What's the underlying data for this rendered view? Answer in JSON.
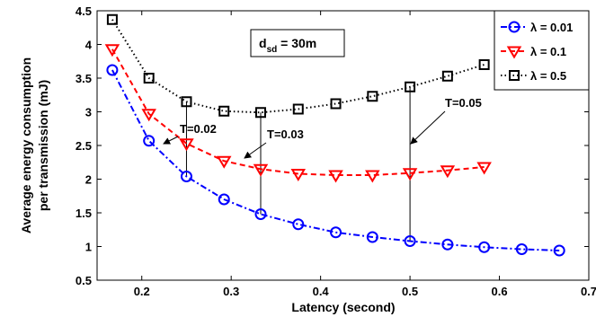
{
  "chart_data": {
    "type": "line",
    "xlabel": "Latency (second)",
    "ylabel_lines": [
      "Average energy consumption",
      "per transmission (mJ)"
    ],
    "xlim": [
      0.15,
      0.7
    ],
    "ylim": [
      0.5,
      4.5
    ],
    "xticks": [
      "0.2",
      "0.3",
      "0.4",
      "0.5",
      "0.6",
      "0.7"
    ],
    "xtick_values": [
      0.2,
      0.3,
      0.4,
      0.5,
      0.6,
      0.7
    ],
    "yticks": [
      "0.5",
      "1",
      "1.5",
      "2",
      "2.5",
      "3",
      "3.5",
      "4",
      "4.5"
    ],
    "ytick_values": [
      0.5,
      1,
      1.5,
      2,
      2.5,
      3,
      3.5,
      4,
      4.5
    ],
    "grid": false,
    "legend_position": "top-right",
    "inner_label": {
      "main": "d",
      "sub": "sd",
      "rest": " = 30m"
    },
    "series": [
      {
        "name": "λ = 0.01",
        "legend_label": "λ = 0.01",
        "color": "#0000ff",
        "marker": "circle",
        "line_style": "dashdot",
        "x": [
          0.167,
          0.208,
          0.25,
          0.292,
          0.333,
          0.375,
          0.417,
          0.458,
          0.5,
          0.542,
          0.583,
          0.625,
          0.667
        ],
        "y": [
          3.62,
          2.57,
          2.04,
          1.7,
          1.48,
          1.33,
          1.21,
          1.14,
          1.08,
          1.03,
          0.99,
          0.96,
          0.94
        ]
      },
      {
        "name": "λ = 0.1",
        "legend_label": "λ = 0.1",
        "color": "#ff0000",
        "marker": "triangle-down",
        "line_style": "dashed",
        "x": [
          0.167,
          0.208,
          0.25,
          0.292,
          0.333,
          0.375,
          0.417,
          0.458,
          0.5,
          0.542,
          0.583
        ],
        "y": [
          3.93,
          2.97,
          2.53,
          2.27,
          2.15,
          2.08,
          2.06,
          2.06,
          2.09,
          2.13,
          2.18
        ]
      },
      {
        "name": "λ = 0.5",
        "legend_label": "λ = 0.5",
        "color": "#000000",
        "marker": "square",
        "line_style": "dotted",
        "x": [
          0.167,
          0.208,
          0.25,
          0.292,
          0.333,
          0.375,
          0.417,
          0.458,
          0.5,
          0.542,
          0.583
        ],
        "y": [
          4.37,
          3.5,
          3.15,
          3.01,
          2.99,
          3.04,
          3.12,
          3.23,
          3.37,
          3.53,
          3.7
        ]
      }
    ],
    "connectors": [
      {
        "x": 0.25,
        "y_from": 2.04,
        "y_to": 3.15
      },
      {
        "x": 0.333,
        "y_from": 1.48,
        "y_to": 2.99
      },
      {
        "x": 0.5,
        "y_from": 1.08,
        "y_to": 3.37
      }
    ],
    "annotations": [
      {
        "text": "T=0.02",
        "x": 0.25,
        "y": 2.4
      },
      {
        "text": "T=0.03",
        "x": 0.34,
        "y": 2.55
      },
      {
        "text": "T=0.05",
        "x": 0.5,
        "y": 3.0
      }
    ]
  }
}
